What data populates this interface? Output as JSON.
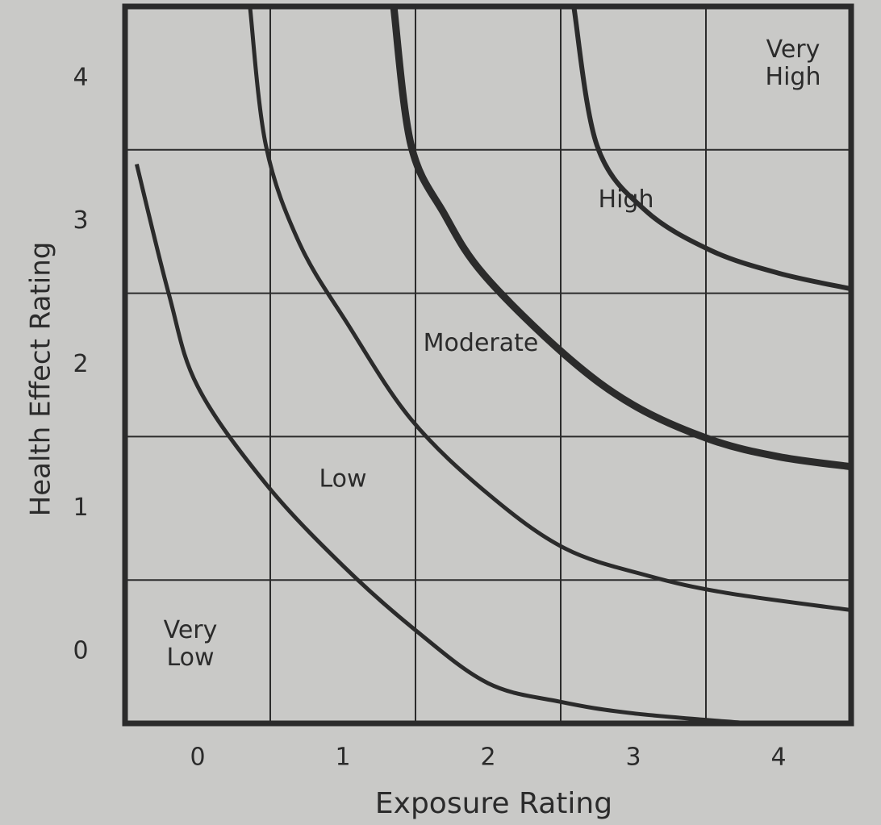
{
  "chart_data": {
    "type": "line",
    "xlabel": "Exposure Rating",
    "ylabel": "Health Effect Rating",
    "xlim": [
      -0.5,
      4.5
    ],
    "ylim": [
      -0.5,
      4.5
    ],
    "xticks": [
      0,
      1,
      2,
      3,
      4
    ],
    "yticks": [
      0,
      1,
      2,
      3,
      4
    ],
    "xgrid": [
      0.5,
      1.5,
      2.5,
      3.5
    ],
    "ygrid": [
      0.5,
      1.5,
      2.5,
      3.5
    ],
    "color": "#2b2b2b",
    "series": [
      {
        "x": [
          -0.42,
          -0.2,
          0,
          0.47,
          1,
          1.5,
          2,
          2.5,
          3,
          3.8
        ],
        "values": [
          3.4,
          2.5,
          1.85,
          1.17,
          0.6,
          0.15,
          -0.22,
          -0.35,
          -0.43,
          -0.5
        ]
      },
      {
        "x": [
          0.36,
          0.47,
          0.7,
          1.03,
          1.47,
          2,
          2.53,
          3.1,
          3.64,
          4.5
        ],
        "values": [
          4.5,
          3.53,
          2.85,
          2.29,
          1.62,
          1.1,
          0.72,
          0.53,
          0.41,
          0.29
        ]
      },
      {
        "x": [
          1.35,
          1.47,
          1.7,
          1.97,
          2.53,
          3,
          3.53,
          4,
          4.5
        ],
        "values": [
          4.5,
          3.53,
          3.05,
          2.63,
          2.07,
          1.72,
          1.48,
          1.36,
          1.29
        ]
      },
      {
        "x": [
          2.59,
          2.75,
          3.08,
          3.53,
          4,
          4.5
        ],
        "values": [
          4.5,
          3.53,
          3.08,
          2.8,
          2.64,
          2.53
        ]
      }
    ],
    "annotations": [
      [
        "Very",
        "Low"
      ],
      [
        "Low"
      ],
      [
        "Moderate"
      ],
      [
        "High"
      ],
      [
        "Very",
        "High"
      ]
    ]
  }
}
